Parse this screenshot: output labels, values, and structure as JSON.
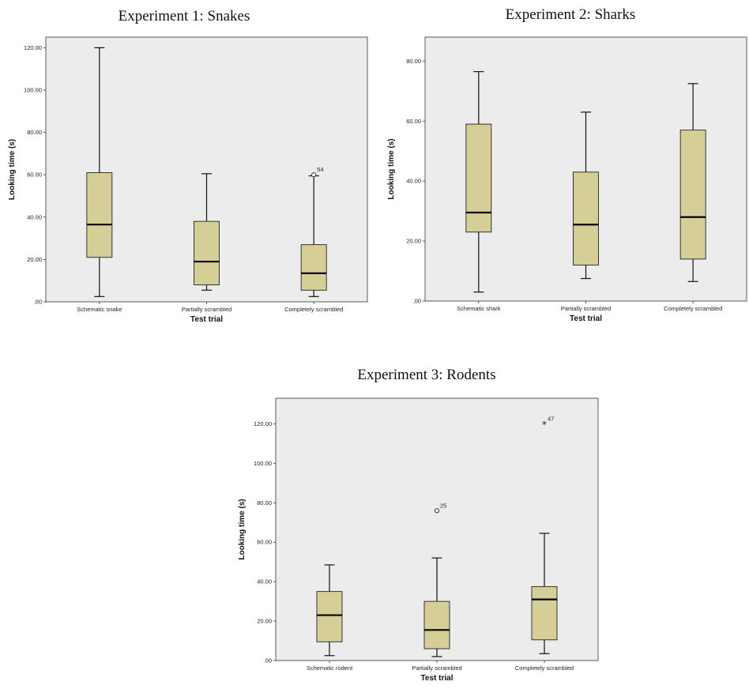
{
  "chart_data": [
    {
      "type": "boxplot",
      "title": "Experiment 1: Snakes",
      "xlabel": "Test trial",
      "ylabel": "Looking time (s)",
      "ylim": [
        0,
        125
      ],
      "yticks": [
        0,
        20,
        40,
        60,
        80,
        100,
        120
      ],
      "ytick_labels": [
        ".00",
        "20.00",
        "40.00",
        "60.00",
        "80.00",
        "100.00",
        "120.00"
      ],
      "box_color": "#d6ce97",
      "categories": [
        "Schematic snake",
        "Partially scrambled",
        "Completely scrambled"
      ],
      "boxes": [
        {
          "min": 2.5,
          "q1": 21,
          "median": 36.5,
          "q3": 61,
          "max": 120,
          "outliers": []
        },
        {
          "min": 5.5,
          "q1": 8,
          "median": 19,
          "q3": 38,
          "max": 60.5,
          "outliers": []
        },
        {
          "min": 2.5,
          "q1": 5.5,
          "median": 13.5,
          "q3": 27,
          "max": 59.5,
          "outliers": [
            {
              "value": 60,
              "label": "54",
              "marker": "circle"
            }
          ]
        }
      ]
    },
    {
      "type": "boxplot",
      "title": "Experiment 2: Sharks",
      "xlabel": "Test trial",
      "ylabel": "Looking time (s)",
      "ylim": [
        0,
        88
      ],
      "yticks": [
        0,
        20,
        40,
        60,
        80
      ],
      "ytick_labels": [
        ".00",
        "20.00",
        "40.00",
        "60.00",
        "80.00"
      ],
      "box_color": "#d6ce97",
      "categories": [
        "Schematic shark",
        "Partially scrambled",
        "Completely scrambled"
      ],
      "boxes": [
        {
          "min": 3,
          "q1": 23,
          "median": 29.5,
          "q3": 59,
          "max": 76.5,
          "outliers": []
        },
        {
          "min": 7.5,
          "q1": 12,
          "median": 25.5,
          "q3": 43,
          "max": 63,
          "outliers": []
        },
        {
          "min": 6.5,
          "q1": 14,
          "median": 28,
          "q3": 57,
          "max": 72.5,
          "outliers": []
        }
      ]
    },
    {
      "type": "boxplot",
      "title": "Experiment 3: Rodents",
      "xlabel": "Test trial",
      "ylabel": "Looking time (s)",
      "ylim": [
        0,
        133
      ],
      "yticks": [
        0,
        20,
        40,
        60,
        80,
        100,
        120
      ],
      "ytick_labels": [
        ".00",
        "20.00",
        "40.00",
        "60.00",
        "80.00",
        "100.00",
        "120.00"
      ],
      "box_color": "#d6ce97",
      "categories": [
        "Schematic rodent",
        "Partially scrambled",
        "Completely scrambled"
      ],
      "boxes": [
        {
          "min": 2.5,
          "q1": 9.5,
          "median": 23,
          "q3": 35,
          "max": 48.5,
          "outliers": []
        },
        {
          "min": 2,
          "q1": 6,
          "median": 15.5,
          "q3": 30,
          "max": 52,
          "outliers": [
            {
              "value": 76,
              "label": "25",
              "marker": "circle"
            }
          ]
        },
        {
          "min": 3.5,
          "q1": 10.5,
          "median": 31,
          "q3": 37.5,
          "max": 64.5,
          "outliers": [
            {
              "value": 120,
              "label": "47",
              "marker": "star"
            }
          ]
        }
      ]
    }
  ]
}
